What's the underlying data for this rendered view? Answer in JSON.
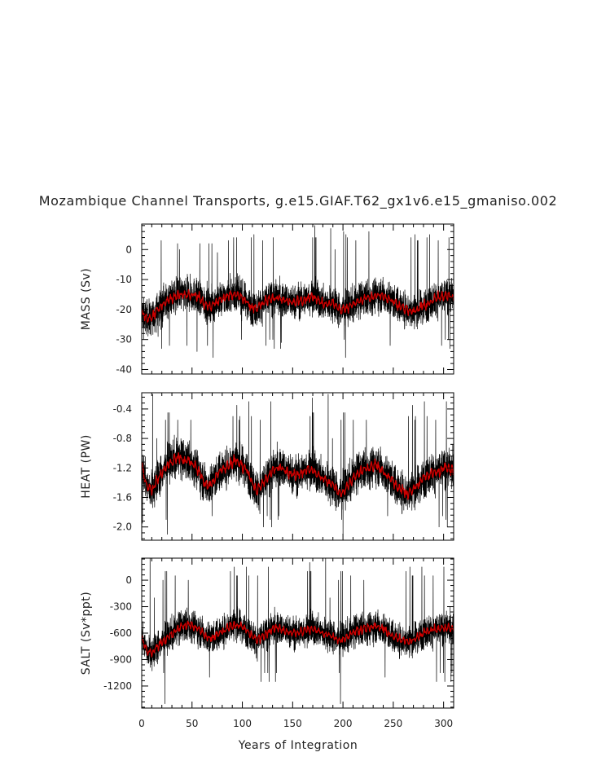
{
  "chart_data": {
    "type": "line",
    "title": "Mozambique Channel Transports, g.e15.GIAF.T62_gx1v6.e15_gmaniso.002",
    "xlabel": "Years of Integration",
    "xlim": [
      0,
      310
    ],
    "xticks": [
      0,
      50,
      100,
      150,
      200,
      250,
      300
    ],
    "grid": false,
    "legend": "none",
    "colors": {
      "monthly": "#000000",
      "running_mean": "#cc0000"
    },
    "panels": [
      {
        "ylabel": "MASS (Sv)",
        "ylim": [
          -41.5,
          8.5
        ],
        "yticks": [
          "0",
          "-10",
          "-20",
          "-30",
          "-40"
        ],
        "ytick_values": [
          0,
          -10,
          -20,
          -30,
          -40
        ],
        "series": [
          {
            "style": "black-monthly",
            "mean": [
              -21,
              -23,
              -23,
              -20,
              -18,
              -17,
              -16,
              -15,
              -15,
              -15,
              -15,
              -16,
              -18,
              -19,
              -18,
              -17,
              -16,
              -15,
              -15,
              -16,
              -17,
              -19,
              -20,
              -18,
              -17,
              -16,
              -16,
              -17,
              -17,
              -18,
              -17,
              -17,
              -16,
              -16,
              -17,
              -18,
              -18,
              -18,
              -20,
              -20,
              -19,
              -18,
              -17,
              -16,
              -16,
              -15,
              -15,
              -16,
              -17,
              -18,
              -19,
              -20,
              -21,
              -20,
              -19,
              -18,
              -17,
              -16,
              -16,
              -15,
              -16
            ],
            "amplitude": 7,
            "spikes_max": [
              4,
              3,
              2,
              5,
              3,
              6,
              7,
              3,
              5,
              4,
              8,
              2,
              3,
              0,
              -1,
              2,
              3,
              1,
              4,
              6,
              2,
              0,
              -1,
              1,
              3,
              4,
              3,
              6,
              1,
              3,
              5
            ],
            "spikes_min": [
              -38,
              -36,
              -34,
              -33,
              -32,
              -31,
              -30,
              -32,
              -33,
              -30,
              -31,
              -34,
              -36,
              -33,
              -32,
              -31,
              -30,
              -29,
              -31,
              -33,
              -34,
              -37,
              -36,
              -34,
              -32,
              -30,
              -31,
              -33,
              -32,
              -31,
              -30
            ]
          },
          {
            "style": "red-running-mean",
            "mean": [
              -21,
              -23,
              -23,
              -20,
              -18,
              -17,
              -16,
              -15,
              -15,
              -15,
              -15,
              -16,
              -18,
              -19,
              -18,
              -17,
              -16,
              -15,
              -15,
              -16,
              -17,
              -19,
              -20,
              -18,
              -17,
              -16,
              -16,
              -17,
              -17,
              -18,
              -17,
              -17,
              -16,
              -16,
              -17,
              -18,
              -18,
              -18,
              -20,
              -20,
              -19,
              -18,
              -17,
              -16,
              -16,
              -15,
              -15,
              -16,
              -17,
              -18,
              -19,
              -20,
              -21,
              -20,
              -19,
              -18,
              -17,
              -16,
              -16,
              -15,
              -16
            ],
            "amplitude": 1.8
          }
        ]
      },
      {
        "ylabel": "HEAT (PW)",
        "ylim": [
          -2.18,
          -0.18
        ],
        "yticks": [
          "-0.4",
          "-0.8",
          "-1.2",
          "-1.6",
          "-2.0"
        ],
        "ytick_values": [
          -0.4,
          -0.8,
          -1.2,
          -1.6,
          -2.0
        ],
        "series": [
          {
            "style": "black-monthly",
            "mean": [
              -1.15,
              -1.45,
              -1.5,
              -1.35,
              -1.25,
              -1.15,
              -1.1,
              -1.05,
              -1.1,
              -1.1,
              -1.15,
              -1.25,
              -1.4,
              -1.45,
              -1.35,
              -1.25,
              -1.2,
              -1.15,
              -1.1,
              -1.15,
              -1.2,
              -1.35,
              -1.5,
              -1.45,
              -1.35,
              -1.25,
              -1.2,
              -1.2,
              -1.25,
              -1.3,
              -1.3,
              -1.25,
              -1.2,
              -1.25,
              -1.3,
              -1.35,
              -1.4,
              -1.45,
              -1.55,
              -1.5,
              -1.4,
              -1.3,
              -1.25,
              -1.2,
              -1.2,
              -1.15,
              -1.2,
              -1.3,
              -1.35,
              -1.45,
              -1.5,
              -1.55,
              -1.5,
              -1.45,
              -1.35,
              -1.3,
              -1.25,
              -1.25,
              -1.2,
              -1.2,
              -1.25
            ],
            "amplitude": 0.32,
            "spikes_max": [
              -0.5,
              -0.6,
              -0.65,
              -0.5,
              -0.4,
              -0.3,
              -0.2,
              -0.55,
              -0.35,
              -0.45,
              -0.25,
              -0.6,
              -0.7,
              -0.75,
              -0.6,
              -0.45,
              -0.5,
              -0.4,
              -0.3,
              -0.55,
              -0.65,
              -0.8,
              -0.75,
              -0.6,
              -0.5,
              -0.45,
              -0.55,
              -0.4,
              -0.65,
              -0.5,
              -0.45
            ],
            "spikes_min": [
              -2.05,
              -2.1,
              -1.95,
              -1.9,
              -1.85,
              -1.8,
              -1.75,
              -1.85,
              -1.9,
              -1.85,
              -1.9,
              -2.0,
              -2.05,
              -2.0,
              -1.95,
              -1.9,
              -1.85,
              -1.8,
              -1.85,
              -1.95,
              -2.0,
              -2.1,
              -2.05,
              -2.0,
              -1.95,
              -1.9,
              -1.85,
              -1.95,
              -2.0,
              -1.95,
              -1.9
            ]
          },
          {
            "style": "red-running-mean",
            "mean": [
              -1.15,
              -1.45,
              -1.5,
              -1.35,
              -1.25,
              -1.15,
              -1.1,
              -1.05,
              -1.1,
              -1.1,
              -1.15,
              -1.25,
              -1.4,
              -1.45,
              -1.35,
              -1.25,
              -1.2,
              -1.15,
              -1.1,
              -1.15,
              -1.2,
              -1.35,
              -1.5,
              -1.45,
              -1.35,
              -1.25,
              -1.2,
              -1.2,
              -1.25,
              -1.3,
              -1.3,
              -1.25,
              -1.2,
              -1.25,
              -1.3,
              -1.35,
              -1.4,
              -1.45,
              -1.55,
              -1.5,
              -1.4,
              -1.3,
              -1.25,
              -1.2,
              -1.2,
              -1.15,
              -1.2,
              -1.3,
              -1.35,
              -1.45,
              -1.5,
              -1.55,
              -1.5,
              -1.45,
              -1.35,
              -1.3,
              -1.25,
              -1.25,
              -1.2,
              -1.2,
              -1.25
            ],
            "amplitude": 0.08
          }
        ]
      },
      {
        "ylabel": "SALT (Sv*ppt)",
        "ylim": [
          -1450,
          250
        ],
        "yticks": [
          "0",
          "-300",
          "-600",
          "-900",
          "-1200"
        ],
        "ytick_values": [
          0,
          -300,
          -600,
          -900,
          -1200
        ],
        "series": [
          {
            "style": "black-monthly",
            "mean": [
              -650,
              -800,
              -820,
              -750,
              -700,
              -650,
              -600,
              -550,
              -520,
              -500,
              -520,
              -560,
              -620,
              -660,
              -640,
              -600,
              -560,
              -520,
              -500,
              -520,
              -560,
              -620,
              -680,
              -650,
              -600,
              -560,
              -540,
              -560,
              -580,
              -600,
              -600,
              -580,
              -560,
              -560,
              -580,
              -600,
              -620,
              -640,
              -680,
              -660,
              -620,
              -580,
              -560,
              -540,
              -540,
              -520,
              -540,
              -580,
              -620,
              -660,
              -680,
              -700,
              -680,
              -640,
              -600,
              -580,
              -560,
              -560,
              -540,
              -540,
              -560
            ],
            "amplitude": 220,
            "spikes_max": [
              100,
              0,
              -50,
              50,
              150,
              200,
              250,
              50,
              150,
              100,
              200,
              0,
              -100,
              -150,
              -50,
              100,
              50,
              100,
              150,
              0,
              -50,
              -200,
              -150,
              -50,
              50,
              100,
              50,
              150,
              -50,
              50,
              100
            ],
            "spikes_min": [
              -1300,
              -1400,
              -1250,
              -1150,
              -1100,
              -1050,
              -1000,
              -1100,
              -1150,
              -1050,
              -1100,
              -1200,
              -1250,
              -1150,
              -1100,
              -1050,
              -1000,
              -980,
              -1050,
              -1150,
              -1200,
              -1300,
              -1250,
              -1150,
              -1100,
              -1050,
              -1000,
              -1100,
              -1150,
              -1100,
              -1050
            ]
          },
          {
            "style": "red-running-mean",
            "mean": [
              -650,
              -800,
              -820,
              -750,
              -700,
              -650,
              -600,
              -550,
              -520,
              -500,
              -520,
              -560,
              -620,
              -660,
              -640,
              -600,
              -560,
              -520,
              -500,
              -520,
              -560,
              -620,
              -680,
              -650,
              -600,
              -560,
              -540,
              -560,
              -580,
              -600,
              -600,
              -580,
              -560,
              -560,
              -580,
              -600,
              -620,
              -640,
              -680,
              -660,
              -620,
              -580,
              -560,
              -540,
              -540,
              -520,
              -540,
              -580,
              -620,
              -660,
              -680,
              -700,
              -680,
              -640,
              -600,
              -580,
              -560,
              -560,
              -540,
              -540,
              -560
            ],
            "amplitude": 55
          }
        ]
      }
    ]
  }
}
